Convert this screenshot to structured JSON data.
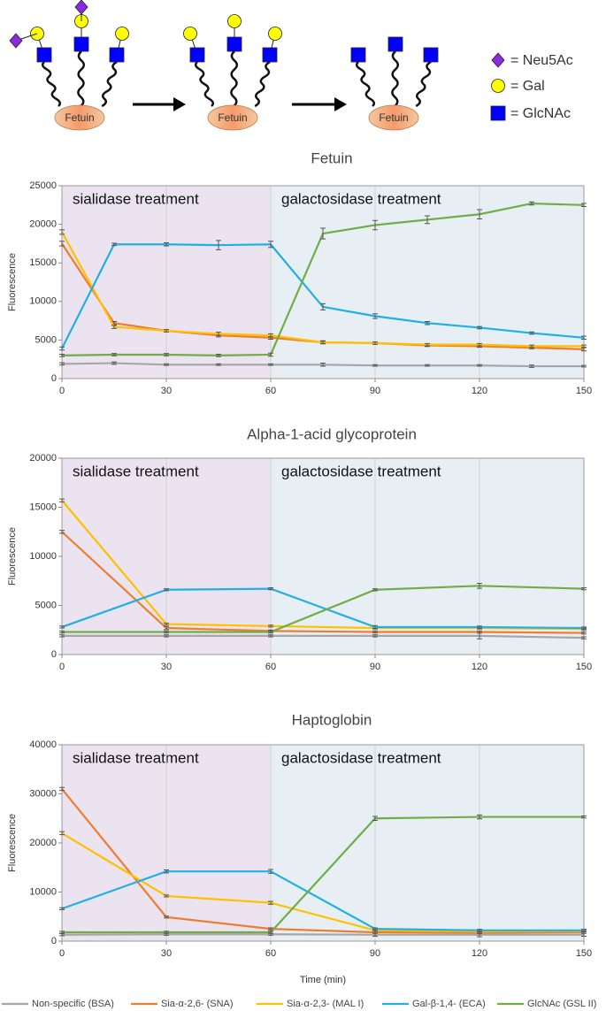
{
  "diagram": {
    "protein_labels": [
      "Fetuin",
      "Fetuin",
      "Fetuin"
    ],
    "key": [
      {
        "label": "= Neu5Ac",
        "color": "#8a2be2"
      },
      {
        "label": "= Gal",
        "color": "#ffff00"
      },
      {
        "label": "= GlcNAc",
        "color": "#0000ff"
      }
    ]
  },
  "chart_data": [
    {
      "type": "line",
      "title": "Fetuin",
      "y_label": "Fluorescence",
      "x": [
        0,
        15,
        30,
        45,
        60,
        75,
        90,
        105,
        120,
        135,
        150
      ],
      "xlim": [
        0,
        150
      ],
      "xticks": [
        0,
        30,
        60,
        90,
        120,
        150
      ],
      "ylim": [
        0,
        25000
      ],
      "yticks": [
        0,
        5000,
        10000,
        15000,
        20000,
        25000
      ],
      "grid": true,
      "regions": [
        {
          "label": "sialidase treatment",
          "x": [
            0,
            60
          ],
          "color": "#ebe3ef"
        },
        {
          "label": "galactosidase treatment",
          "x": [
            60,
            150
          ],
          "color": "#e7eff4"
        }
      ],
      "series": [
        {
          "name": "Non-specific (BSA)",
          "color": "#a6a6a6",
          "values": [
            1900,
            2000,
            1800,
            1800,
            1800,
            1800,
            1700,
            1700,
            1700,
            1600,
            1600
          ],
          "errors": [
            150,
            150,
            100,
            100,
            100,
            200,
            100,
            100,
            100,
            150,
            100
          ]
        },
        {
          "name": "Sia-α-2,6- (SNA)",
          "color": "#ed7d31",
          "values": [
            17500,
            7200,
            6200,
            5600,
            5300,
            4700,
            4600,
            4300,
            4200,
            4000,
            3800
          ],
          "errors": [
            300,
            200,
            150,
            200,
            200,
            200,
            150,
            150,
            150,
            150,
            200
          ]
        },
        {
          "name": "Sia-α-2,3- (MAL I)",
          "color": "#ffc000",
          "values": [
            19000,
            6700,
            6200,
            5800,
            5600,
            4700,
            4600,
            4400,
            4400,
            4200,
            4200
          ],
          "errors": [
            300,
            200,
            150,
            200,
            200,
            150,
            150,
            150,
            150,
            150,
            150
          ]
        },
        {
          "name": "Gal-β-1,4- (ECA)",
          "color": "#1fb0e6",
          "values": [
            3900,
            17400,
            17400,
            17300,
            17400,
            9300,
            8100,
            7200,
            6600,
            5900,
            5300
          ],
          "errors": [
            200,
            150,
            200,
            600,
            400,
            400,
            300,
            200,
            150,
            150,
            200
          ]
        },
        {
          "name": "GlcNAc (GSL II)",
          "color": "#70ad47",
          "values": [
            3000,
            3100,
            3100,
            3000,
            3100,
            18800,
            19900,
            20600,
            21300,
            22700,
            22500
          ],
          "errors": [
            150,
            150,
            150,
            150,
            200,
            700,
            600,
            500,
            600,
            200,
            200
          ]
        }
      ]
    },
    {
      "type": "line",
      "title": "Alpha-1-acid glycoprotein",
      "y_label": "Fluorescence",
      "x": [
        0,
        30,
        60,
        90,
        120,
        150
      ],
      "xlim": [
        0,
        150
      ],
      "xticks": [
        0,
        30,
        60,
        90,
        120,
        150
      ],
      "ylim": [
        0,
        20000
      ],
      "yticks": [
        0,
        5000,
        10000,
        15000,
        20000
      ],
      "grid": true,
      "regions": [
        {
          "label": "sialidase treatment",
          "x": [
            0,
            60
          ],
          "color": "#ebe3ef"
        },
        {
          "label": "galactosidase treatment",
          "x": [
            60,
            150
          ],
          "color": "#e7eff4"
        }
      ],
      "series": [
        {
          "name": "Non-specific (BSA)",
          "color": "#a6a6a6",
          "values": [
            1900,
            1900,
            1900,
            1900,
            1900,
            1700
          ],
          "errors": [
            100,
            100,
            100,
            100,
            300,
            100
          ]
        },
        {
          "name": "Sia-α-2,6- (SNA)",
          "color": "#ed7d31",
          "values": [
            12500,
            2700,
            2400,
            2300,
            2300,
            2200
          ],
          "errors": [
            150,
            150,
            100,
            100,
            100,
            100
          ]
        },
        {
          "name": "Sia-α-2,3- (MAL I)",
          "color": "#ffc000",
          "values": [
            15700,
            3100,
            2900,
            2700,
            2700,
            2600
          ],
          "errors": [
            150,
            100,
            100,
            100,
            100,
            100
          ]
        },
        {
          "name": "Gal-β-1,4- (ECA)",
          "color": "#1fb0e6",
          "values": [
            2800,
            6600,
            6700,
            2800,
            2800,
            2700
          ],
          "errors": [
            100,
            100,
            100,
            150,
            100,
            100
          ]
        },
        {
          "name": "GlcNAc (GSL II)",
          "color": "#70ad47",
          "values": [
            2300,
            2300,
            2300,
            6600,
            7000,
            6700
          ],
          "errors": [
            100,
            100,
            100,
            100,
            250,
            100
          ]
        }
      ]
    },
    {
      "type": "line",
      "title": "Haptoglobin",
      "y_label": "Fluorescence",
      "x_label": "Time (min)",
      "x": [
        0,
        30,
        60,
        90,
        120,
        150
      ],
      "xlim": [
        0,
        150
      ],
      "xticks": [
        0,
        30,
        60,
        90,
        120,
        150
      ],
      "ylim": [
        0,
        40000
      ],
      "yticks": [
        0,
        10000,
        20000,
        30000,
        40000
      ],
      "grid": true,
      "regions": [
        {
          "label": "sialidase treatment",
          "x": [
            0,
            60
          ],
          "color": "#ebe3ef"
        },
        {
          "label": "galactosidase treatment",
          "x": [
            60,
            150
          ],
          "color": "#e7eff4"
        }
      ],
      "series": [
        {
          "name": "Non-specific (BSA)",
          "color": "#a6a6a6",
          "values": [
            1300,
            1400,
            1400,
            1300,
            1300,
            1300
          ],
          "errors": [
            200,
            200,
            200,
            300,
            400,
            300
          ]
        },
        {
          "name": "Sia-α-2,6- (SNA)",
          "color": "#ed7d31",
          "values": [
            31000,
            4900,
            2500,
            1800,
            1700,
            1800
          ],
          "errors": [
            300,
            200,
            200,
            200,
            200,
            200
          ]
        },
        {
          "name": "Sia-α-2,3- (MAL I)",
          "color": "#ffc000",
          "values": [
            22000,
            9200,
            7800,
            2200,
            2000,
            2100
          ],
          "errors": [
            300,
            200,
            300,
            200,
            200,
            200
          ]
        },
        {
          "name": "Gal-β-1,4- (ECA)",
          "color": "#1fb0e6",
          "values": [
            6600,
            14200,
            14200,
            2500,
            2200,
            2200
          ],
          "errors": [
            200,
            300,
            400,
            200,
            200,
            200
          ]
        },
        {
          "name": "GlcNAc (GSL II)",
          "color": "#70ad47",
          "values": [
            1800,
            1800,
            1800,
            25000,
            25300,
            25300
          ],
          "errors": [
            200,
            200,
            200,
            400,
            400,
            200
          ]
        }
      ]
    }
  ]
}
